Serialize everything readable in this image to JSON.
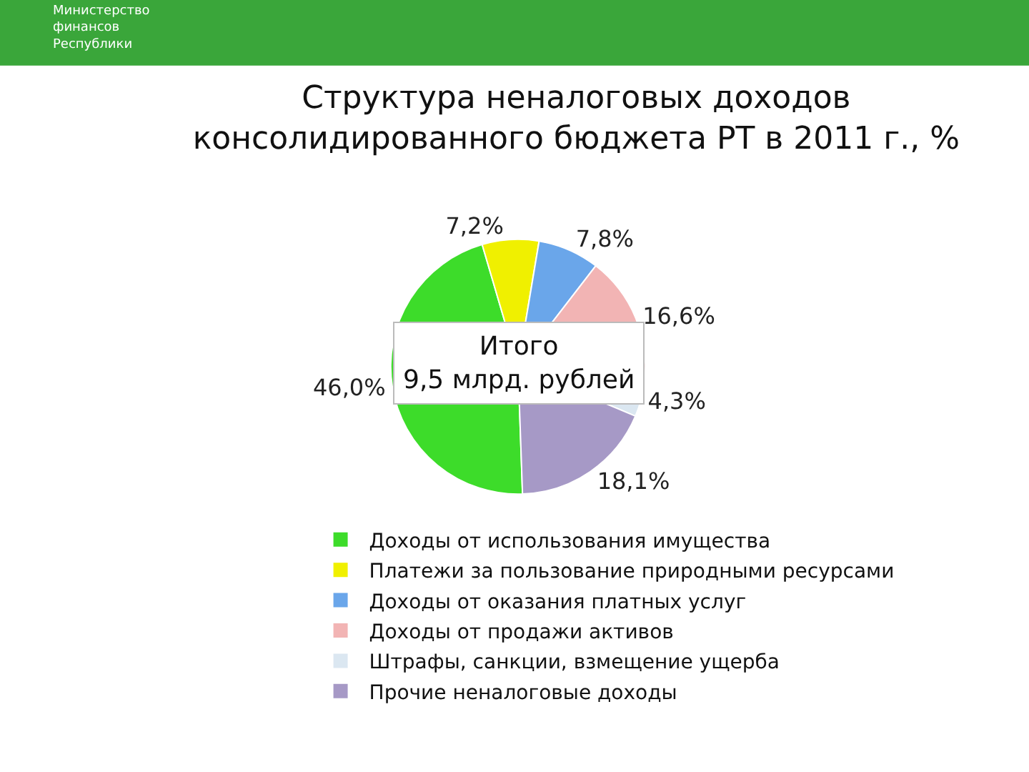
{
  "chart_data": {
    "type": "pie",
    "title": "Структура неналоговых доходов\nконсолидированного бюджета РТ в 2011 г., %",
    "categories": [
      "Доходы от использования имущества",
      "Платежи за пользование природными ресурсами",
      "Доходы от оказания платных услуг",
      "Доходы от продажи активов",
      "Штрафы, санкции, взмещение ущерба",
      "Прочие неналоговые доходы"
    ],
    "values": [
      46.0,
      7.2,
      7.8,
      16.6,
      4.3,
      18.1
    ],
    "value_labels": [
      "46,0%",
      "7,2%",
      "7,8%",
      "16,6%",
      "4,3%",
      "18,1%"
    ],
    "colors": [
      "#3ddc2a",
      "#f0f000",
      "#6aa6ea",
      "#f2b4b4",
      "#dbe7f1",
      "#a699c6"
    ],
    "legend": "bottom",
    "annotations": [
      "Министерство\nфинансов\nРеспублики",
      "Итого\n9,5 млрд. рублей"
    ]
  }
}
